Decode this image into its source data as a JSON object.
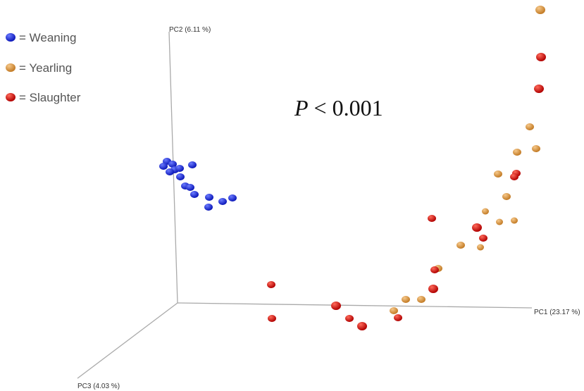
{
  "legend": [
    {
      "label": "= Weaning"
    },
    {
      "label": "= Yearling"
    },
    {
      "label": "= Slaughter"
    }
  ],
  "axes": {
    "pc1": "PC1 (23.17 %)",
    "pc2": "PC2 (6.11 %)",
    "pc3": "PC3 (4.03 %)"
  },
  "annotation": {
    "italic": "P",
    "rest": "< 0.001"
  }
}
